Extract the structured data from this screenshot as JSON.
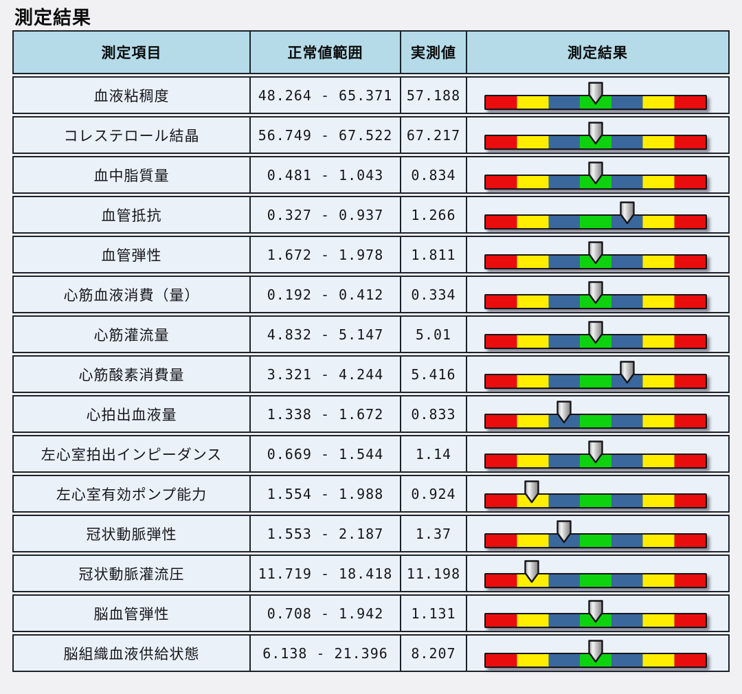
{
  "page_title": "測定結果",
  "table": {
    "headers": [
      "測定項目",
      "正常値範囲",
      "実測値",
      "測定結果"
    ],
    "rows": [
      {
        "item": "血液粘稠度",
        "range": "48.264 - 65.371",
        "value": "57.188",
        "marker_position": 0.5,
        "marker_zone": "green"
      },
      {
        "item": "コレステロール結晶",
        "range": "56.749 - 67.522",
        "value": "67.217",
        "marker_position": 0.5,
        "marker_zone": "green"
      },
      {
        "item": "血中脂質量",
        "range": "0.481 - 1.043",
        "value": "0.834",
        "marker_position": 0.5,
        "marker_zone": "green"
      },
      {
        "item": "血管抵抗",
        "range": "0.327 - 0.937",
        "value": "1.266",
        "marker_position": 0.643,
        "marker_zone": "blue-right"
      },
      {
        "item": "血管弾性",
        "range": "1.672 - 1.978",
        "value": "1.811",
        "marker_position": 0.5,
        "marker_zone": "green"
      },
      {
        "item": "心筋血液消費（量）",
        "range": "0.192 - 0.412",
        "value": "0.334",
        "marker_position": 0.5,
        "marker_zone": "green"
      },
      {
        "item": "心筋灌流量",
        "range": "4.832 - 5.147",
        "value": "5.01",
        "marker_position": 0.5,
        "marker_zone": "green"
      },
      {
        "item": "心筋酸素消費量",
        "range": "3.321 - 4.244",
        "value": "5.416",
        "marker_position": 0.643,
        "marker_zone": "blue-right"
      },
      {
        "item": "心拍出血液量",
        "range": "1.338 - 1.672",
        "value": "0.833",
        "marker_position": 0.357,
        "marker_zone": "blue-left"
      },
      {
        "item": "左心室拍出インピーダンス",
        "range": "0.669 - 1.544",
        "value": "1.14",
        "marker_position": 0.5,
        "marker_zone": "green"
      },
      {
        "item": "左心室有効ポンプ能力",
        "range": "1.554 - 1.988",
        "value": "0.924",
        "marker_position": 0.214,
        "marker_zone": "yellow-left"
      },
      {
        "item": "冠状動脈弾性",
        "range": "1.553 - 2.187",
        "value": "1.37",
        "marker_position": 0.357,
        "marker_zone": "blue-left"
      },
      {
        "item": "冠状動脈灌流圧",
        "range": "11.719 - 18.418",
        "value": "11.198",
        "marker_position": 0.214,
        "marker_zone": "yellow-left"
      },
      {
        "item": "脳血管弾性",
        "range": "0.708 - 1.942",
        "value": "1.131",
        "marker_position": 0.5,
        "marker_zone": "green"
      },
      {
        "item": "脳組織血液供給状態",
        "range": "6.138 - 21.396",
        "value": "8.207",
        "marker_position": 0.5,
        "marker_zone": "green"
      }
    ]
  },
  "result_bar": {
    "segment_colors": [
      "#e90d0d",
      "#ffee00",
      "#3a689c",
      "#0fd20f",
      "#3a689c",
      "#ffee00",
      "#e90d0d"
    ],
    "marker_icon": "down-arrow-icon",
    "marker_fill": "#c9c9c9",
    "outline_color": "#14141a"
  },
  "theme": {
    "page_background": "#f1f1f3",
    "header_background": "#b5dbe9",
    "row_background": "#ebf1f9",
    "border_color": "#1b2129",
    "text_color": "#15161a"
  }
}
